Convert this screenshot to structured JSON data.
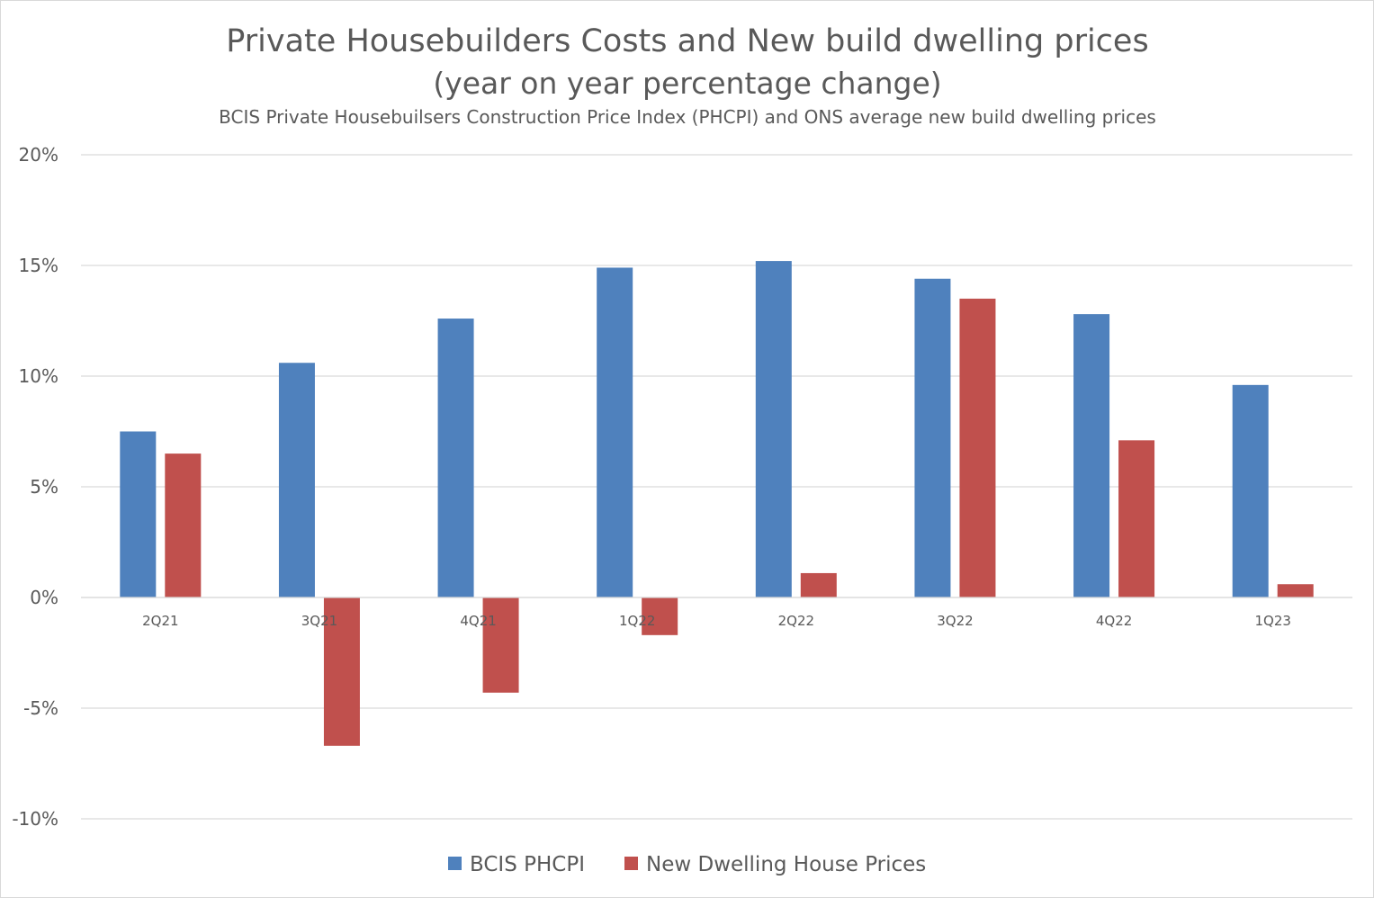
{
  "chart_data": {
    "type": "bar",
    "title": "Private Housebuilders Costs and New build dwelling prices",
    "title_line2": "(year on year percentage change)",
    "subtitle": "BCIS Private Housebuilsers Construction Price Index (PHCPI) and ONS average new build dwelling prices",
    "xlabel": "",
    "ylabel": "",
    "categories": [
      "2Q21",
      "3Q21",
      "4Q21",
      "1Q22",
      "2Q22",
      "3Q22",
      "4Q22",
      "1Q23"
    ],
    "series": [
      {
        "name": "BCIS PHCPI",
        "color": "#4F81BD",
        "values": [
          7.5,
          10.6,
          12.6,
          14.9,
          15.2,
          14.4,
          12.8,
          9.6
        ]
      },
      {
        "name": "New Dwelling House Prices",
        "color": "#C0504D",
        "values": [
          6.5,
          -6.7,
          -4.3,
          -1.7,
          1.1,
          13.5,
          7.1,
          0.6
        ]
      }
    ],
    "ylim": [
      -10,
      20
    ],
    "yticks": [
      -10,
      -5,
      0,
      5,
      10,
      15,
      20
    ],
    "ytick_labels": [
      "-10%",
      "-5%",
      "0%",
      "5%",
      "10%",
      "15%",
      "20%"
    ],
    "grid": true,
    "legend": "bottom"
  }
}
